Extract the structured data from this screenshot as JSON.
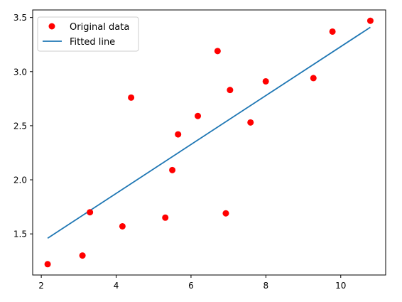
{
  "chart_data": {
    "type": "scatter",
    "title": "",
    "xlabel": "",
    "ylabel": "",
    "xlim": [
      1.77,
      11.2
    ],
    "ylim": [
      1.12,
      3.57
    ],
    "xticks": [
      2,
      4,
      6,
      8,
      10
    ],
    "yticks": [
      1.5,
      2.0,
      2.5,
      3.0,
      3.5
    ],
    "xtick_labels": [
      "2",
      "4",
      "6",
      "8",
      "10"
    ],
    "ytick_labels": [
      "1.5",
      "2.0",
      "2.5",
      "3.0",
      "3.5"
    ],
    "grid": false,
    "legend_position": "upper-left",
    "series": [
      {
        "name": "Original data",
        "kind": "scatter",
        "color": "#ff0000",
        "x": [
          2.17,
          3.1,
          3.3,
          4.168,
          4.4,
          5.313,
          5.5,
          5.654,
          6.182,
          6.71,
          6.93,
          7.042,
          7.59,
          7.997,
          9.27,
          9.779,
          10.791
        ],
        "y": [
          1.22,
          1.3,
          1.7,
          1.57,
          2.76,
          1.65,
          2.09,
          2.42,
          2.59,
          3.19,
          1.69,
          2.83,
          2.53,
          2.91,
          2.94,
          3.37,
          3.47
        ]
      },
      {
        "name": "Fitted line",
        "kind": "line",
        "color": "#1f77b4",
        "x": [
          2.17,
          10.791
        ],
        "y": [
          1.46,
          3.41
        ]
      }
    ]
  }
}
